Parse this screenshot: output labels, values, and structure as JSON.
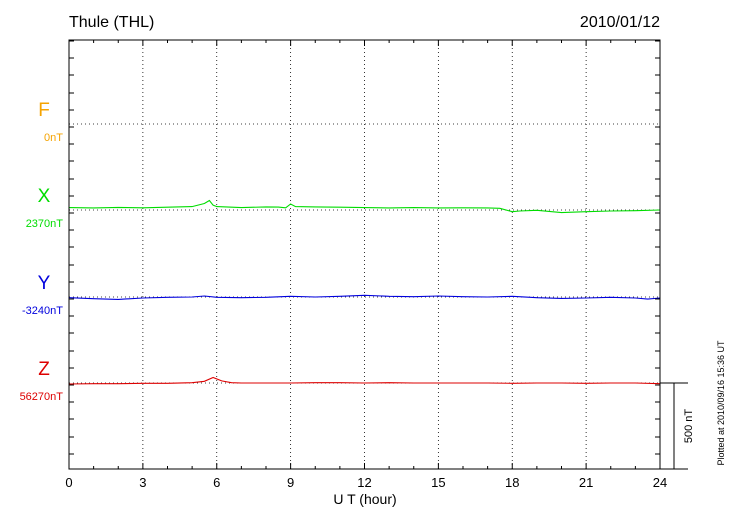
{
  "title_left": "Thule (THL)",
  "title_right": "2010/01/12",
  "footer_note": "Plotted at 2010/09/16 15:36 UT",
  "chart_data": {
    "type": "line",
    "xlabel": "U T (hour)",
    "xlim": [
      0,
      24
    ],
    "x_ticks": [
      0,
      3,
      6,
      9,
      12,
      15,
      18,
      21,
      24
    ],
    "x_tick_labels": [
      "0",
      "3",
      "6",
      "9",
      "12",
      "15",
      "18",
      "21",
      "24"
    ],
    "scale_bar": {
      "label": "500 nT",
      "value_nT": 500
    },
    "components": [
      {
        "name": "F",
        "baseline_label": "0nT",
        "baseline_nT": 0,
        "color": "#f5a300",
        "points": []
      },
      {
        "name": "X",
        "baseline_label": "2370nT",
        "baseline_nT": 2370,
        "color": "#00dd00",
        "points": [
          [
            0,
            14
          ],
          [
            1,
            12
          ],
          [
            2,
            15
          ],
          [
            3,
            13
          ],
          [
            4,
            16
          ],
          [
            5,
            20
          ],
          [
            5.5,
            38
          ],
          [
            5.7,
            55
          ],
          [
            5.85,
            28
          ],
          [
            6,
            20
          ],
          [
            7,
            14
          ],
          [
            8,
            18
          ],
          [
            8.5,
            17
          ],
          [
            8.8,
            13
          ],
          [
            9,
            35
          ],
          [
            9.2,
            20
          ],
          [
            10,
            18
          ],
          [
            11,
            16
          ],
          [
            12,
            14
          ],
          [
            13,
            12
          ],
          [
            14,
            14
          ],
          [
            15,
            12
          ],
          [
            16,
            13
          ],
          [
            17,
            12
          ],
          [
            17.5,
            10
          ],
          [
            18,
            -10
          ],
          [
            18.3,
            -6
          ],
          [
            19,
            -2
          ],
          [
            20,
            -15
          ],
          [
            21,
            -10
          ],
          [
            22,
            -6
          ],
          [
            23,
            -4
          ],
          [
            24,
            0
          ]
        ]
      },
      {
        "name": "Y",
        "baseline_label": "-3240nT",
        "baseline_nT": -3240,
        "color": "#0000dd",
        "points": [
          [
            0,
            -4
          ],
          [
            1,
            -10
          ],
          [
            2,
            -14
          ],
          [
            3,
            -6
          ],
          [
            4,
            -2
          ],
          [
            5,
            0
          ],
          [
            5.5,
            6
          ],
          [
            6,
            -2
          ],
          [
            7,
            -4
          ],
          [
            8,
            -2
          ],
          [
            9,
            4
          ],
          [
            10,
            0
          ],
          [
            11,
            4
          ],
          [
            12,
            10
          ],
          [
            13,
            4
          ],
          [
            14,
            2
          ],
          [
            15,
            6
          ],
          [
            16,
            2
          ],
          [
            17,
            0
          ],
          [
            18,
            4
          ],
          [
            19,
            -4
          ],
          [
            20,
            -8
          ],
          [
            21,
            -6
          ],
          [
            22,
            -2
          ],
          [
            23,
            -6
          ],
          [
            23.5,
            -12
          ],
          [
            24,
            -6
          ]
        ]
      },
      {
        "name": "Z",
        "baseline_label": "56270nT",
        "baseline_nT": 56270,
        "color": "#dd0000",
        "points": [
          [
            0,
            -6
          ],
          [
            1,
            -4
          ],
          [
            2,
            -4
          ],
          [
            3,
            -2
          ],
          [
            4,
            -2
          ],
          [
            5,
            2
          ],
          [
            5.5,
            10
          ],
          [
            5.85,
            32
          ],
          [
            6.2,
            12
          ],
          [
            6.6,
            2
          ],
          [
            7,
            0
          ],
          [
            8,
            0
          ],
          [
            9,
            0
          ],
          [
            10,
            2
          ],
          [
            11,
            2
          ],
          [
            12,
            0
          ],
          [
            13,
            2
          ],
          [
            14,
            0
          ],
          [
            15,
            0
          ],
          [
            16,
            0
          ],
          [
            17,
            0
          ],
          [
            18,
            -2
          ],
          [
            19,
            0
          ],
          [
            20,
            0
          ],
          [
            21,
            -2
          ],
          [
            22,
            0
          ],
          [
            23,
            0
          ],
          [
            24,
            -4
          ]
        ]
      }
    ]
  }
}
